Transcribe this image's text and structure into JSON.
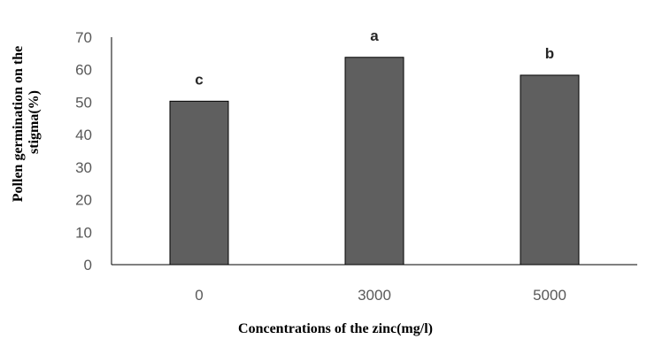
{
  "chart_data": {
    "type": "bar",
    "title": "",
    "xlabel": "Concentrations of the zinc(mg/l)",
    "ylabel_lines": [
      "Pollen germination on the",
      "stigma(%)"
    ],
    "categories": [
      "0",
      "3000",
      "5000"
    ],
    "values": [
      50.3,
      63.8,
      58.3
    ],
    "significance_letters": [
      "c",
      "a",
      "b"
    ],
    "ylim": [
      0,
      70
    ],
    "yticks": [
      "0",
      "10",
      "20",
      "30",
      "40",
      "50",
      "60",
      "70"
    ],
    "grid": false,
    "legend": "none",
    "colors": {
      "bar": "#5f5f5f",
      "bar_edge": "#000000",
      "axis": "#000000",
      "tick_text": "#595959"
    }
  }
}
